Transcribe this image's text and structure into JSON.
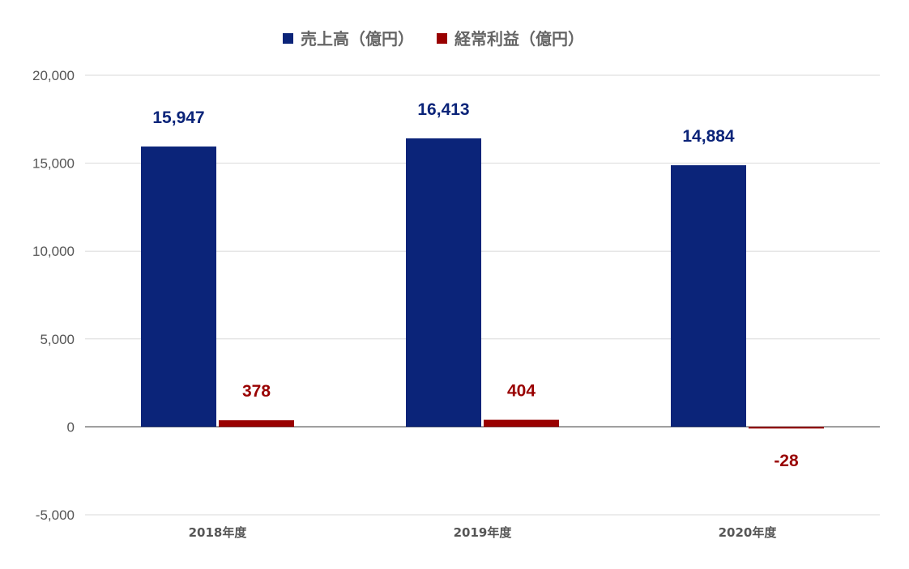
{
  "chart_data": {
    "type": "bar",
    "categories": [
      "2018年度",
      "2019年度",
      "2020年度"
    ],
    "series": [
      {
        "name": "売上高（億円）",
        "values": [
          15947,
          16413,
          14884
        ],
        "labels": [
          "15,947",
          "16,413",
          "14,884"
        ],
        "color": "#0b2479"
      },
      {
        "name": "経常利益（億円）",
        "values": [
          378,
          404,
          -28
        ],
        "labels": [
          "378",
          "404",
          "-28"
        ],
        "color": "#990000"
      }
    ],
    "ylim": [
      -5000,
      20000
    ],
    "yticks": [
      20000,
      15000,
      10000,
      5000,
      0,
      -5000
    ],
    "ytick_labels": [
      "20,000",
      "15,000",
      "10,000",
      "5,000",
      "0",
      "-5,000"
    ],
    "grid": true,
    "legend_position": "top-center"
  }
}
